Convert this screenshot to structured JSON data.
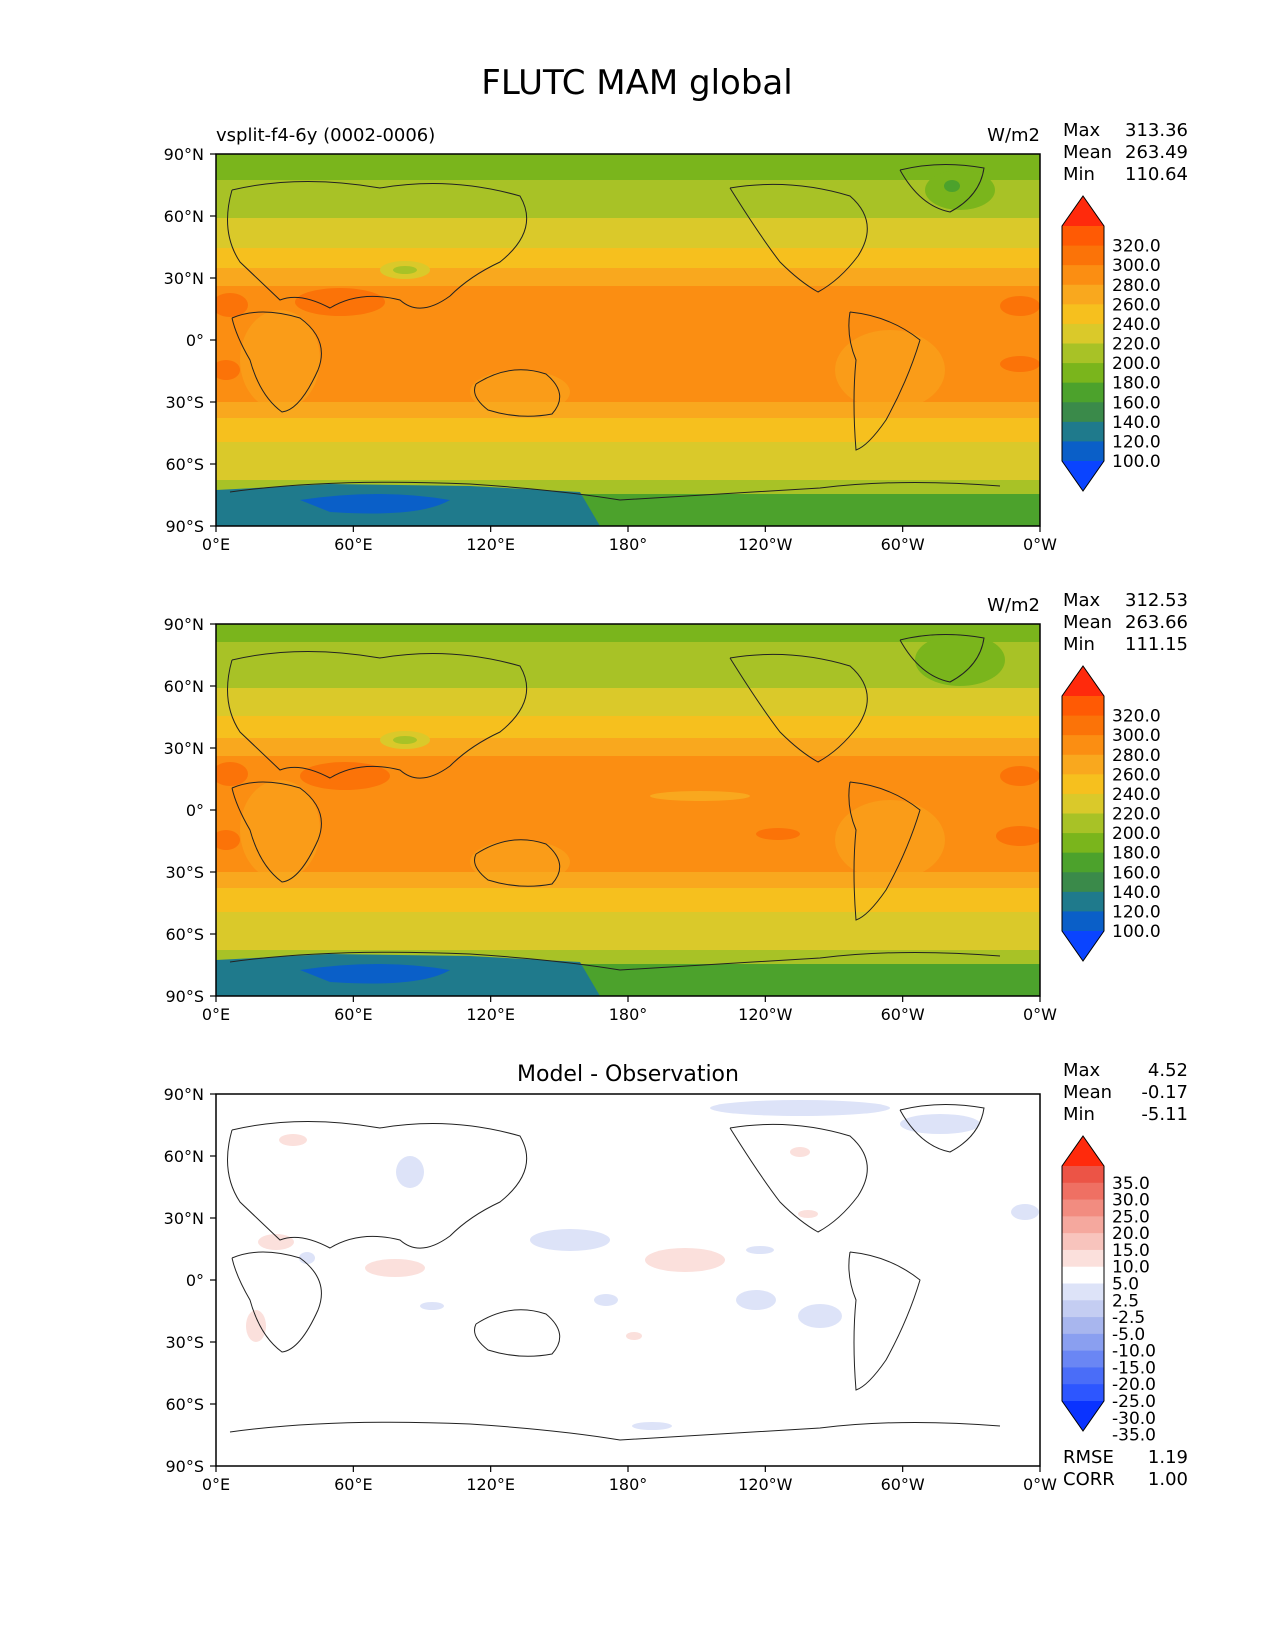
{
  "figure_title": "FLUTC MAM global",
  "colors": {
    "top_scale": [
      "#0a44ff",
      "#0a5fc8",
      "#1f7a8c",
      "#3a8a4a",
      "#4ca22c",
      "#7ab51c",
      "#a8c226",
      "#dac92a",
      "#f6c01e",
      "#f9a81e",
      "#fb8e12",
      "#fb7308",
      "#ff5a04",
      "#ff2a0c"
    ],
    "diff_scale": [
      "#0a33ff",
      "#2d56ff",
      "#4a6df8",
      "#6a86f4",
      "#8a9ff0",
      "#a8b6ee",
      "#c4cdf2",
      "#dde3f8",
      "#ffffff",
      "#fbe0dc",
      "#f8c4bd",
      "#f5a89e",
      "#f28c80",
      "#ef7063",
      "#ec5446",
      "#ff2a0c"
    ]
  },
  "panels": [
    {
      "subtitle_left": "vsplit-f4-6y (0002-0006)",
      "units": "W/m2",
      "stats": [
        {
          "label": "Max",
          "value": "313.36"
        },
        {
          "label": "Mean",
          "value": "263.49"
        },
        {
          "label": "Min",
          "value": "110.64"
        }
      ],
      "colorbar_labels": [
        "320.0",
        "300.0",
        "280.0",
        "260.0",
        "240.0",
        "220.0",
        "200.0",
        "180.0",
        "160.0",
        "140.0",
        "120.0",
        "100.0"
      ]
    },
    {
      "subtitle_left": "",
      "units": "W/m2",
      "stats": [
        {
          "label": "Max",
          "value": "312.53"
        },
        {
          "label": "Mean",
          "value": "263.66"
        },
        {
          "label": "Min",
          "value": "111.15"
        }
      ],
      "colorbar_labels": [
        "320.0",
        "300.0",
        "280.0",
        "260.0",
        "240.0",
        "220.0",
        "200.0",
        "180.0",
        "160.0",
        "140.0",
        "120.0",
        "100.0"
      ]
    },
    {
      "title": "Model - Observation",
      "stats": [
        {
          "label": "Max",
          "value": "4.52"
        },
        {
          "label": "Mean",
          "value": "-0.17"
        },
        {
          "label": "Min",
          "value": "-5.11"
        }
      ],
      "colorbar_labels": [
        "35.0",
        "30.0",
        "25.0",
        "20.0",
        "15.0",
        "10.0",
        "5.0",
        "2.5",
        "-2.5",
        "-5.0",
        "-10.0",
        "-15.0",
        "-20.0",
        "-25.0",
        "-30.0",
        "-35.0"
      ],
      "extra_stats": [
        {
          "label": "RMSE",
          "value": "1.19"
        },
        {
          "label": "CORR",
          "value": "1.00"
        }
      ]
    }
  ],
  "chart_data": {
    "type": "heatmap",
    "title": "FLUTC MAM global",
    "projection": "equirectangular",
    "x_ticks": [
      "0°E",
      "60°E",
      "120°E",
      "180°",
      "120°W",
      "60°W",
      "0°W"
    ],
    "y_ticks": [
      "90°N",
      "60°N",
      "30°N",
      "0°",
      "30°S",
      "60°S",
      "90°S"
    ],
    "xlim": [
      0,
      360
    ],
    "ylim": [
      -90,
      90
    ],
    "maps": [
      {
        "name": "vsplit-f4-6y (0002-0006)",
        "units": "W/m2",
        "max": 313.36,
        "mean": 263.49,
        "min": 110.64,
        "levels": [
          100,
          120,
          140,
          160,
          180,
          200,
          220,
          240,
          260,
          280,
          300,
          320
        ]
      },
      {
        "units": "W/m2",
        "max": 312.53,
        "mean": 263.66,
        "min": 111.15,
        "levels": [
          100,
          120,
          140,
          160,
          180,
          200,
          220,
          240,
          260,
          280,
          300,
          320
        ]
      },
      {
        "name": "Model - Observation",
        "max": 4.52,
        "mean": -0.17,
        "min": -5.11,
        "rmse": 1.19,
        "corr": 1.0,
        "levels": [
          -35,
          -30,
          -25,
          -20,
          -15,
          -10,
          -5,
          -2.5,
          2.5,
          5,
          10,
          15,
          20,
          25,
          30,
          35
        ]
      }
    ]
  }
}
